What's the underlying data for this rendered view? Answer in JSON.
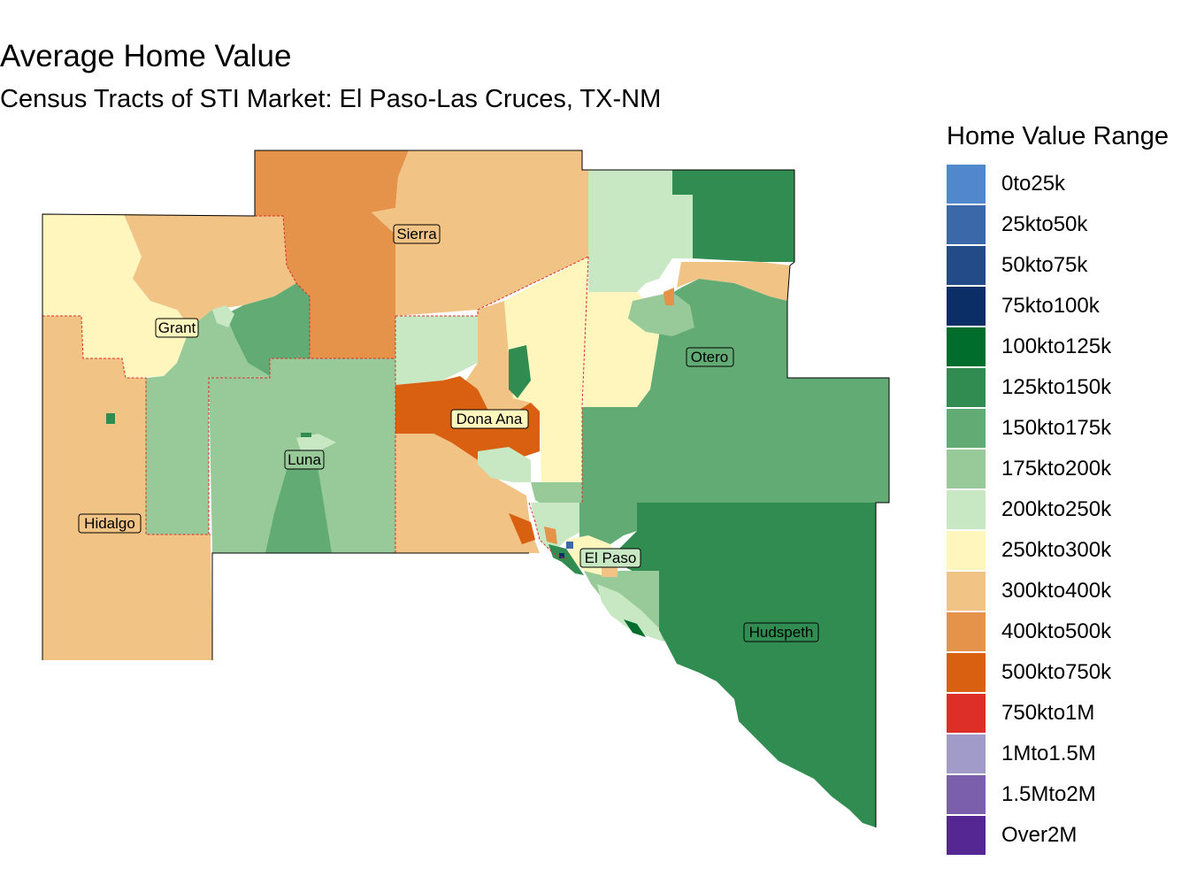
{
  "title": "Average Home Value",
  "subtitle": "Census Tracts of STI Market: El Paso-Las Cruces, TX-NM",
  "legend": {
    "title": "Home Value Range",
    "items": [
      {
        "label": "0to25k",
        "color": "#5187cc"
      },
      {
        "label": "25kto50k",
        "color": "#3a68a8"
      },
      {
        "label": "50kto75k",
        "color": "#234b87"
      },
      {
        "label": "75kto100k",
        "color": "#0b2e66"
      },
      {
        "label": "100kto125k",
        "color": "#006d2c"
      },
      {
        "label": "125kto150k",
        "color": "#318c52"
      },
      {
        "label": "150kto175k",
        "color": "#62ab75"
      },
      {
        "label": "175kto200k",
        "color": "#97ca98"
      },
      {
        "label": "200kto250k",
        "color": "#c8e8c3"
      },
      {
        "label": "250kto300k",
        "color": "#fef6bd"
      },
      {
        "label": "300kto400k",
        "color": "#f1c385"
      },
      {
        "label": "400kto500k",
        "color": "#e5924b"
      },
      {
        "label": "500kto750k",
        "color": "#d95f11"
      },
      {
        "label": "750kto1M",
        "color": "#dd2f28"
      },
      {
        "label": "1Mto1.5M",
        "color": "#a09bc9"
      },
      {
        "label": "1.5Mto2M",
        "color": "#7b5fac"
      },
      {
        "label": "Over2M",
        "color": "#542792"
      }
    ]
  },
  "counties": [
    {
      "name": "Sierra"
    },
    {
      "name": "Grant"
    },
    {
      "name": "Otero"
    },
    {
      "name": "Dona Ana"
    },
    {
      "name": "Luna"
    },
    {
      "name": "Hidalgo"
    },
    {
      "name": "El Paso"
    },
    {
      "name": "Hudspeth"
    }
  ]
}
